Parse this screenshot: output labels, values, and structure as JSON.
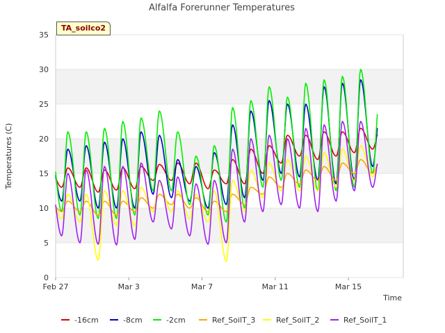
{
  "chart_data": {
    "type": "line",
    "title": "Alfalfa Forerunner Temperatures",
    "badge": "TA_soilco2",
    "xlabel": "Time",
    "ylabel": "Temperatures (C)",
    "ylim": [
      0,
      35
    ],
    "yticks": [
      0,
      5,
      10,
      15,
      20,
      25,
      30,
      35
    ],
    "xlim": [
      "2021-02-27",
      "2021-03-18"
    ],
    "xticks": [
      {
        "date": "2021-02-27",
        "label": "Feb 27"
      },
      {
        "date": "2021-03-03",
        "label": "Mar 3"
      },
      {
        "date": "2021-03-07",
        "label": "Mar 7"
      },
      {
        "date": "2021-03-11",
        "label": "Mar 11"
      },
      {
        "date": "2021-03-15",
        "label": "Mar 15"
      }
    ],
    "grid": "horizontal alternating bands",
    "legend_position": "bottom",
    "series": [
      {
        "name": "-16cm",
        "color": "#dd0000",
        "days": [
          {
            "date": "2021-02-27",
            "min": 13.0,
            "max": 15.8
          },
          {
            "date": "2021-02-28",
            "min": 13.0,
            "max": 15.8
          },
          {
            "date": "2021-03-01",
            "min": 12.3,
            "max": 15.5
          },
          {
            "date": "2021-03-02",
            "min": 12.6,
            "max": 15.8
          },
          {
            "date": "2021-03-03",
            "min": 12.8,
            "max": 16.0
          },
          {
            "date": "2021-03-04",
            "min": 14.0,
            "max": 16.3
          },
          {
            "date": "2021-03-05",
            "min": 14.0,
            "max": 16.5
          },
          {
            "date": "2021-03-06",
            "min": 13.5,
            "max": 16.5
          },
          {
            "date": "2021-03-07",
            "min": 12.8,
            "max": 15.5
          },
          {
            "date": "2021-03-08",
            "min": 13.5,
            "max": 17.0
          },
          {
            "date": "2021-03-09",
            "min": 13.5,
            "max": 18.5
          },
          {
            "date": "2021-03-10",
            "min": 15.0,
            "max": 19.0
          },
          {
            "date": "2021-03-11",
            "min": 16.5,
            "max": 20.5
          },
          {
            "date": "2021-03-12",
            "min": 17.5,
            "max": 20.5
          },
          {
            "date": "2021-03-13",
            "min": 17.0,
            "max": 21.0
          },
          {
            "date": "2021-03-14",
            "min": 17.5,
            "max": 21.0
          },
          {
            "date": "2021-03-15",
            "min": 18.0,
            "max": 21.5
          },
          {
            "date": "2021-03-16",
            "min": 18.5,
            "max": 21.0
          }
        ]
      },
      {
        "name": "-8cm",
        "color": "#0000cc",
        "days": [
          {
            "date": "2021-02-27",
            "min": 11.0,
            "max": 18.5
          },
          {
            "date": "2021-02-28",
            "min": 11.0,
            "max": 19.0
          },
          {
            "date": "2021-03-01",
            "min": 10.0,
            "max": 19.5
          },
          {
            "date": "2021-03-02",
            "min": 10.0,
            "max": 20.0
          },
          {
            "date": "2021-03-03",
            "min": 10.0,
            "max": 21.0
          },
          {
            "date": "2021-03-04",
            "min": 12.0,
            "max": 20.5
          },
          {
            "date": "2021-03-05",
            "min": 11.5,
            "max": 17.0
          },
          {
            "date": "2021-03-06",
            "min": 11.0,
            "max": 16.0
          },
          {
            "date": "2021-03-07",
            "min": 10.0,
            "max": 18.0
          },
          {
            "date": "2021-03-08",
            "min": 10.5,
            "max": 22.0
          },
          {
            "date": "2021-03-09",
            "min": 11.5,
            "max": 24.0
          },
          {
            "date": "2021-03-10",
            "min": 14.0,
            "max": 25.5
          },
          {
            "date": "2021-03-11",
            "min": 15.0,
            "max": 25.0
          },
          {
            "date": "2021-03-12",
            "min": 14.5,
            "max": 25.0
          },
          {
            "date": "2021-03-13",
            "min": 14.0,
            "max": 27.5
          },
          {
            "date": "2021-03-14",
            "min": 13.5,
            "max": 28.0
          },
          {
            "date": "2021-03-15",
            "min": 14.0,
            "max": 28.5
          },
          {
            "date": "2021-03-16",
            "min": 16.0,
            "max": 22.5
          }
        ]
      },
      {
        "name": "-2cm",
        "color": "#00ee00",
        "days": [
          {
            "date": "2021-02-27",
            "min": 9.5,
            "max": 21.0
          },
          {
            "date": "2021-02-28",
            "min": 9.0,
            "max": 21.0
          },
          {
            "date": "2021-03-01",
            "min": 8.5,
            "max": 21.5
          },
          {
            "date": "2021-03-02",
            "min": 8.5,
            "max": 22.5
          },
          {
            "date": "2021-03-03",
            "min": 9.0,
            "max": 23.0
          },
          {
            "date": "2021-03-04",
            "min": 12.5,
            "max": 24.0
          },
          {
            "date": "2021-03-05",
            "min": 12.5,
            "max": 21.0
          },
          {
            "date": "2021-03-06",
            "min": 10.5,
            "max": 17.5
          },
          {
            "date": "2021-03-07",
            "min": 9.0,
            "max": 19.0
          },
          {
            "date": "2021-03-08",
            "min": 8.0,
            "max": 24.5
          },
          {
            "date": "2021-03-09",
            "min": 10.0,
            "max": 25.5
          },
          {
            "date": "2021-03-10",
            "min": 13.0,
            "max": 27.5
          },
          {
            "date": "2021-03-11",
            "min": 14.0,
            "max": 26.0
          },
          {
            "date": "2021-03-12",
            "min": 13.0,
            "max": 28.0
          },
          {
            "date": "2021-03-13",
            "min": 12.5,
            "max": 28.5
          },
          {
            "date": "2021-03-14",
            "min": 12.5,
            "max": 29.0
          },
          {
            "date": "2021-03-15",
            "min": 13.0,
            "max": 30.0
          },
          {
            "date": "2021-03-16",
            "min": 15.0,
            "max": 25.0
          }
        ]
      },
      {
        "name": "Ref_SoilT_3",
        "color": "#ffa500",
        "days": [
          {
            "date": "2021-02-27",
            "min": 9.5,
            "max": 11.0
          },
          {
            "date": "2021-02-28",
            "min": 9.5,
            "max": 11.0
          },
          {
            "date": "2021-03-01",
            "min": 9.0,
            "max": 11.0
          },
          {
            "date": "2021-03-02",
            "min": 9.0,
            "max": 11.0
          },
          {
            "date": "2021-03-03",
            "min": 9.5,
            "max": 11.5
          },
          {
            "date": "2021-03-04",
            "min": 10.0,
            "max": 12.0
          },
          {
            "date": "2021-03-05",
            "min": 10.5,
            "max": 12.0
          },
          {
            "date": "2021-03-06",
            "min": 10.0,
            "max": 11.5
          },
          {
            "date": "2021-03-07",
            "min": 9.5,
            "max": 11.0
          },
          {
            "date": "2021-03-08",
            "min": 9.5,
            "max": 12.0
          },
          {
            "date": "2021-03-09",
            "min": 10.5,
            "max": 13.0
          },
          {
            "date": "2021-03-10",
            "min": 12.0,
            "max": 14.5
          },
          {
            "date": "2021-03-11",
            "min": 13.0,
            "max": 15.0
          },
          {
            "date": "2021-03-12",
            "min": 13.5,
            "max": 15.5
          },
          {
            "date": "2021-03-13",
            "min": 14.0,
            "max": 16.0
          },
          {
            "date": "2021-03-14",
            "min": 14.0,
            "max": 16.5
          },
          {
            "date": "2021-03-15",
            "min": 15.0,
            "max": 17.0
          },
          {
            "date": "2021-03-16",
            "min": 15.0,
            "max": 16.5
          }
        ]
      },
      {
        "name": "Ref_SoilT_2",
        "color": "#ffff00",
        "days": [
          {
            "date": "2021-02-27",
            "min": 8.5,
            "max": 12.0
          },
          {
            "date": "2021-02-28",
            "min": 8.0,
            "max": 12.0
          },
          {
            "date": "2021-03-01",
            "min": 2.5,
            "max": 12.5
          },
          {
            "date": "2021-03-02",
            "min": 7.5,
            "max": 12.5
          },
          {
            "date": "2021-03-03",
            "min": 7.5,
            "max": 13.0
          },
          {
            "date": "2021-03-04",
            "min": 9.5,
            "max": 13.5
          },
          {
            "date": "2021-03-05",
            "min": 9.5,
            "max": 12.5
          },
          {
            "date": "2021-03-06",
            "min": 8.5,
            "max": 12.0
          },
          {
            "date": "2021-03-07",
            "min": 8.0,
            "max": 12.5
          },
          {
            "date": "2021-03-08",
            "min": 2.3,
            "max": 14.0
          },
          {
            "date": "2021-03-09",
            "min": 9.5,
            "max": 15.5
          },
          {
            "date": "2021-03-10",
            "min": 11.5,
            "max": 16.5
          },
          {
            "date": "2021-03-11",
            "min": 12.5,
            "max": 17.0
          },
          {
            "date": "2021-03-12",
            "min": 12.5,
            "max": 17.5
          },
          {
            "date": "2021-03-13",
            "min": 12.5,
            "max": 18.0
          },
          {
            "date": "2021-03-14",
            "min": 13.0,
            "max": 18.5
          },
          {
            "date": "2021-03-15",
            "min": 14.0,
            "max": 19.0
          },
          {
            "date": "2021-03-16",
            "min": 14.5,
            "max": 16.5
          }
        ]
      },
      {
        "name": "Ref_SoilT_1",
        "color": "#a020f0",
        "days": [
          {
            "date": "2021-02-27",
            "min": 6.0,
            "max": 15.0
          },
          {
            "date": "2021-02-28",
            "min": 5.0,
            "max": 15.5
          },
          {
            "date": "2021-03-01",
            "min": 4.8,
            "max": 16.0
          },
          {
            "date": "2021-03-02",
            "min": 4.7,
            "max": 16.0
          },
          {
            "date": "2021-03-03",
            "min": 5.5,
            "max": 16.5
          },
          {
            "date": "2021-03-04",
            "min": 8.0,
            "max": 14.0
          },
          {
            "date": "2021-03-05",
            "min": 7.0,
            "max": 14.5
          },
          {
            "date": "2021-03-06",
            "min": 6.0,
            "max": 13.5
          },
          {
            "date": "2021-03-07",
            "min": 4.8,
            "max": 14.0
          },
          {
            "date": "2021-03-08",
            "min": 5.0,
            "max": 18.5
          },
          {
            "date": "2021-03-09",
            "min": 8.0,
            "max": 20.0
          },
          {
            "date": "2021-03-10",
            "min": 9.5,
            "max": 20.5
          },
          {
            "date": "2021-03-11",
            "min": 10.5,
            "max": 20.0
          },
          {
            "date": "2021-03-12",
            "min": 10.0,
            "max": 21.5
          },
          {
            "date": "2021-03-13",
            "min": 9.5,
            "max": 22.0
          },
          {
            "date": "2021-03-14",
            "min": 11.0,
            "max": 22.5
          },
          {
            "date": "2021-03-15",
            "min": 12.5,
            "max": 22.5
          },
          {
            "date": "2021-03-16",
            "min": 13.0,
            "max": 17.0
          }
        ]
      }
    ]
  }
}
